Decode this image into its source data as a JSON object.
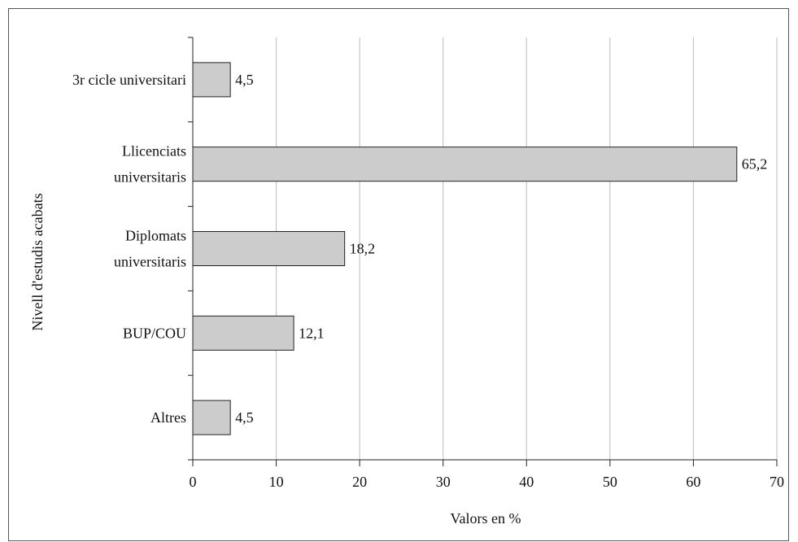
{
  "chart_data": {
    "type": "bar",
    "orientation": "horizontal",
    "title": "",
    "xlabel": "Valors en %",
    "ylabel": "Nivell d'estudis acabats",
    "categories": [
      [
        "3r cicle universitari"
      ],
      [
        "Llicenciats",
        "universitaris"
      ],
      [
        "Diplomats",
        "universitaris"
      ],
      [
        "BUP/COU"
      ],
      [
        "Altres"
      ]
    ],
    "values": [
      4.5,
      65.2,
      18.2,
      12.1,
      4.5
    ],
    "value_labels": [
      "4,5",
      "65,2",
      "18,2",
      "12,1",
      "4,5"
    ],
    "xlim": [
      0,
      70
    ],
    "xticks": [
      0,
      10,
      20,
      30,
      40,
      50,
      60,
      70
    ],
    "grid": "vertical",
    "legend": "none",
    "bar_color": "#cccccc",
    "bar_edge_color": "#222222",
    "grid_color": "#bbbbbb"
  }
}
